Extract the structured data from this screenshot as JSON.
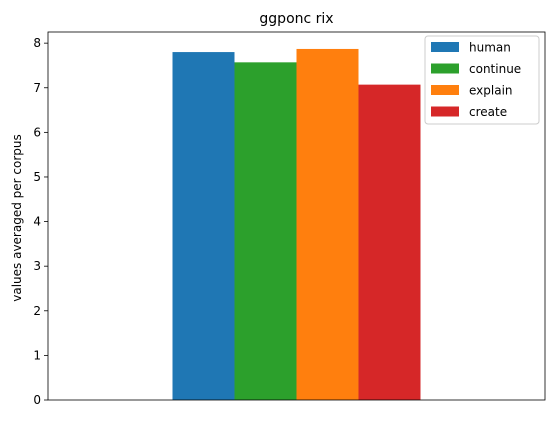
{
  "chart_data": {
    "type": "bar",
    "title": "ggponc rix",
    "xlabel": "",
    "ylabel": "values averaged per corpus",
    "ylim": [
      0,
      8.25
    ],
    "yticks": [
      0,
      1,
      2,
      3,
      4,
      5,
      6,
      7,
      8
    ],
    "grid": false,
    "legend_position": "top-right",
    "series": [
      {
        "name": "human",
        "value": 7.8,
        "color": "#1f77b4"
      },
      {
        "name": "continue",
        "value": 7.57,
        "color": "#2ca02c"
      },
      {
        "name": "explain",
        "value": 7.87,
        "color": "#ff7f0e"
      },
      {
        "name": "create",
        "value": 7.07,
        "color": "#d62728"
      }
    ]
  }
}
